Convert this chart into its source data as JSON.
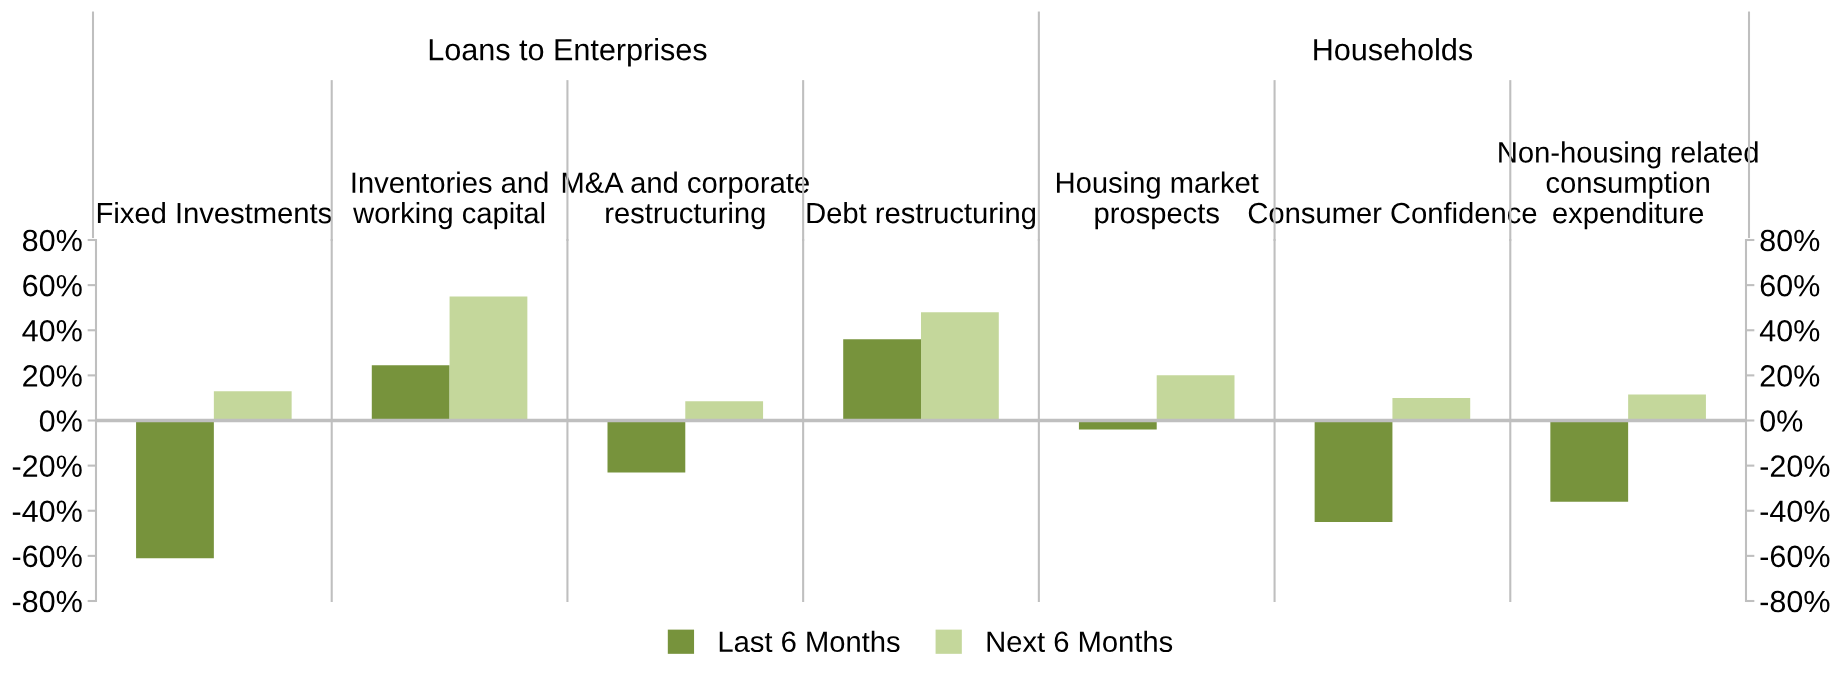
{
  "chart_data": {
    "type": "bar",
    "categories": [
      "Fixed Investments",
      "Inventories and\nworking capital",
      "M&A and corporate\nrestructuring",
      "Debt restructuring",
      "Housing market\nprospects",
      "Consumer Confidence",
      "Non-housing related\nconsumption\nexpenditure"
    ],
    "series": [
      {
        "name": "Last 6 Months",
        "color": "#77933c",
        "values": [
          -61,
          24.5,
          -23,
          36,
          -4,
          -45,
          -36
        ]
      },
      {
        "name": "Next 6 Months",
        "color": "#c4d79b",
        "values": [
          13,
          55,
          8.5,
          48,
          20,
          10,
          11.5
        ]
      }
    ],
    "ylim": [
      -80,
      80
    ],
    "yticks": [
      {
        "value": -80,
        "label": "-80%"
      },
      {
        "value": -60,
        "label": "-60%"
      },
      {
        "value": -40,
        "label": "-40%"
      },
      {
        "value": -20,
        "label": "-20%"
      },
      {
        "value": 0,
        "label": "0%"
      },
      {
        "value": 20,
        "label": "20%"
      },
      {
        "value": 40,
        "label": "40%"
      },
      {
        "value": 60,
        "label": "60%"
      },
      {
        "value": 80,
        "label": "80%"
      }
    ],
    "y2lim": [
      -80,
      80
    ],
    "y2ticks": [
      {
        "value": -80,
        "label": "-80%"
      },
      {
        "value": -60,
        "label": "-60%"
      },
      {
        "value": -40,
        "label": "-40%"
      },
      {
        "value": -20,
        "label": "-20%"
      },
      {
        "value": 0,
        "label": "0%"
      },
      {
        "value": 20,
        "label": "20%"
      },
      {
        "value": 40,
        "label": "40%"
      },
      {
        "value": 60,
        "label": "60%"
      },
      {
        "value": 80,
        "label": "80%"
      }
    ],
    "annotations": [
      "Loans to Enterprises",
      "Households"
    ],
    "grid": false,
    "legend": "bottom"
  }
}
